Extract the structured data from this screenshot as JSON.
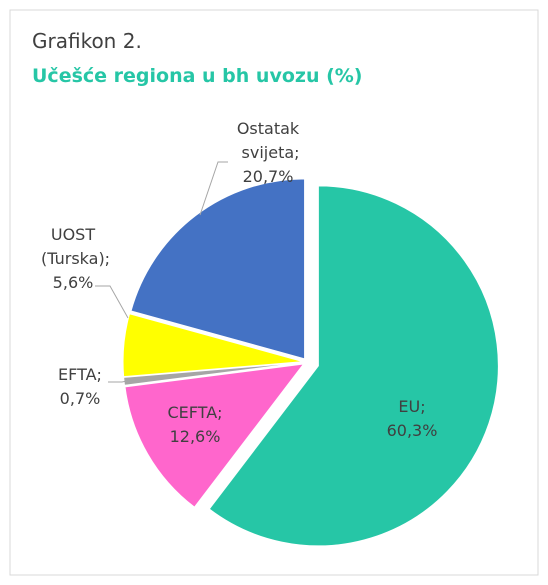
{
  "chart_data": {
    "type": "pie",
    "title": "Grafikon 2.",
    "subtitle": "Učešće regiona u bh uvozu (%)",
    "categories": [
      "EU;",
      "CEFTA;",
      "EFTA;",
      "UOST (Turska);",
      "Ostatak svijeta;"
    ],
    "values": [
      60.3,
      12.6,
      0.7,
      5.6,
      20.7
    ],
    "value_labels": [
      "60,3%",
      "12,6%",
      "0,7%",
      "5,6%",
      "20,7%"
    ],
    "colors": [
      "#26c6a6",
      "#ff66cc",
      "#a6a6a6",
      "#ffff00",
      "#4472c4"
    ]
  }
}
